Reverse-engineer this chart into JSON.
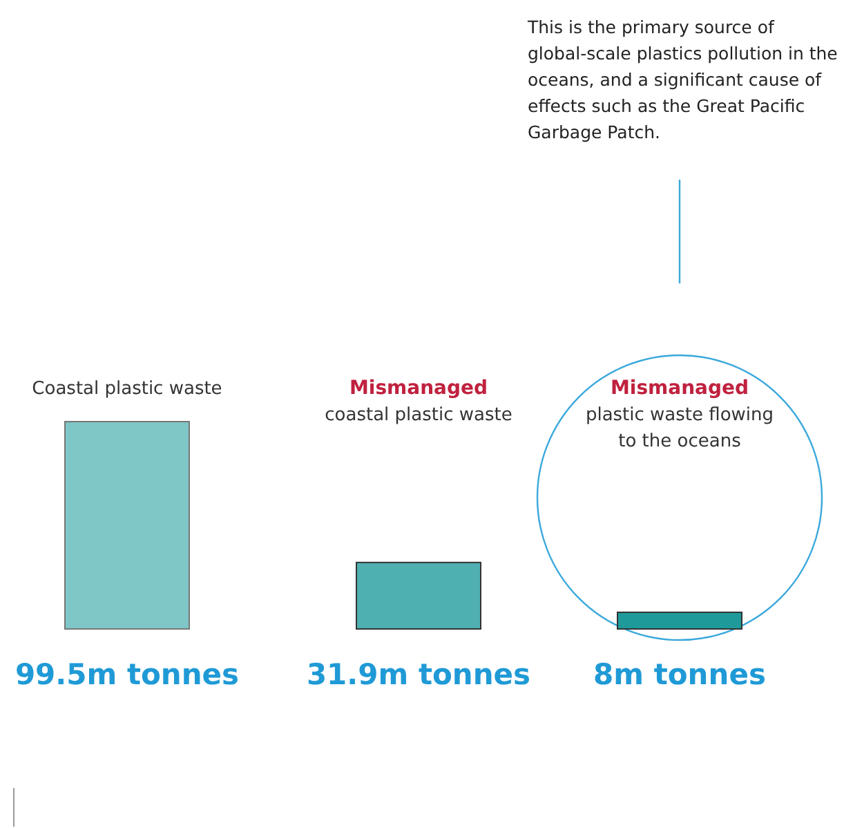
{
  "chart_data": {
    "type": "bar",
    "categories": [
      "Coastal plastic waste",
      "Mismanaged coastal plastic waste",
      "Mismanaged plastic waste flowing to the oceans"
    ],
    "values": [
      99.5,
      31.9,
      8
    ],
    "colors": [
      "#7fc6c6",
      "#4fb0b2",
      "#1f9a9a"
    ],
    "value_labels": [
      "99.5m tonnes",
      "31.9m tonnes",
      "8m tonnes"
    ],
    "annotations": [
      "This is the primary source of global-scale plastics pollution in the oceans, and a significant cause of effects such as the Great Pacific Garbage Patch."
    ]
  }
}
